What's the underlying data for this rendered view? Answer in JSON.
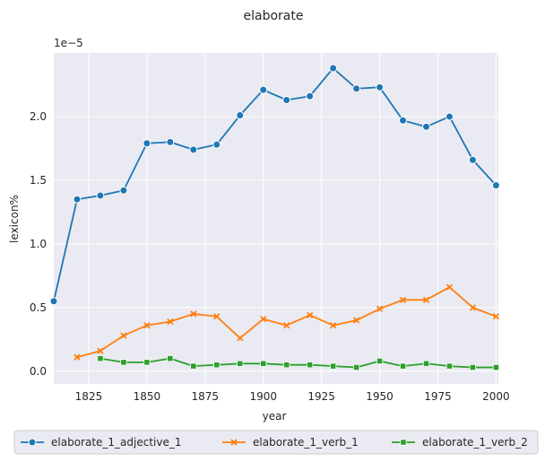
{
  "chart_data": {
    "type": "line",
    "title": "elaborate",
    "xlabel": "year",
    "ylabel": "lexicon%",
    "y_scale_label": "1e−5",
    "xlim": [
      1810,
      2001
    ],
    "ylim": [
      -0.1,
      2.5
    ],
    "x_ticks": [
      1825,
      1850,
      1875,
      1900,
      1925,
      1950,
      1975,
      2000
    ],
    "y_ticks": [
      0.0,
      0.5,
      1.0,
      1.5,
      2.0
    ],
    "y_tick_labels": [
      "0.0",
      "0.5",
      "1.0",
      "1.5",
      "2.0"
    ],
    "grid": true,
    "legend_position": "bottom, below the plot",
    "series": [
      {
        "name": "elaborate_1_adjective_1",
        "color": "#1f77b4",
        "marker": "circle",
        "x": [
          1810,
          1820,
          1830,
          1840,
          1850,
          1860,
          1870,
          1880,
          1890,
          1900,
          1910,
          1920,
          1930,
          1940,
          1950,
          1960,
          1970,
          1980,
          1990,
          2000
        ],
        "y": [
          0.55,
          1.35,
          1.38,
          1.42,
          1.79,
          1.8,
          1.74,
          1.78,
          2.01,
          2.21,
          2.13,
          2.16,
          2.38,
          2.22,
          2.23,
          1.97,
          1.92,
          2.0,
          1.66,
          1.46
        ]
      },
      {
        "name": "elaborate_1_verb_1",
        "color": "#ff7f0e",
        "marker": "x",
        "x": [
          1820,
          1830,
          1840,
          1850,
          1860,
          1870,
          1880,
          1890,
          1900,
          1910,
          1920,
          1930,
          1940,
          1950,
          1960,
          1970,
          1980,
          1990,
          2000
        ],
        "y": [
          0.11,
          0.16,
          0.28,
          0.36,
          0.39,
          0.45,
          0.43,
          0.26,
          0.41,
          0.36,
          0.44,
          0.36,
          0.4,
          0.49,
          0.56,
          0.56,
          0.66,
          0.5,
          0.43
        ]
      },
      {
        "name": "elaborate_1_verb_2",
        "color": "#2ca02c",
        "marker": "square",
        "x": [
          1830,
          1840,
          1850,
          1860,
          1870,
          1880,
          1890,
          1900,
          1910,
          1920,
          1930,
          1940,
          1950,
          1960,
          1970,
          1980,
          1990,
          2000
        ],
        "y": [
          0.1,
          0.07,
          0.07,
          0.1,
          0.04,
          0.05,
          0.06,
          0.06,
          0.05,
          0.05,
          0.04,
          0.03,
          0.08,
          0.04,
          0.06,
          0.04,
          0.03,
          0.03
        ]
      }
    ]
  }
}
